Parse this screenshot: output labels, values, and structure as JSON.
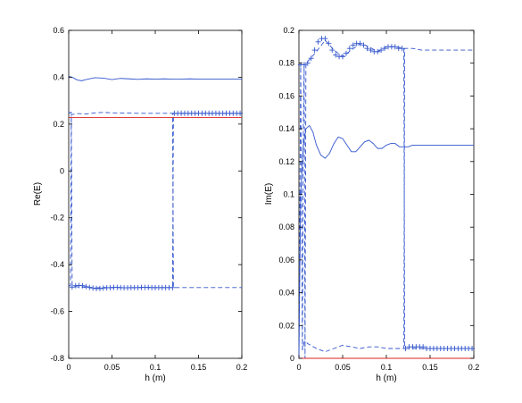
{
  "chart_data": [
    {
      "type": "line",
      "title": "",
      "xlabel": "h (m)",
      "ylabel": "Re(E)",
      "xlim": [
        0,
        0.2
      ],
      "ylim": [
        -0.8,
        0.6
      ],
      "x_ticks": [
        "0",
        "0.05",
        "0.1",
        "0.15",
        "0.2"
      ],
      "y_ticks": [
        "-0.8",
        "-0.6",
        "-0.4",
        "-0.2",
        "0",
        "0.2",
        "0.4",
        "0.6"
      ],
      "x_tick_values": [
        0,
        0.05,
        0.1,
        0.15,
        0.2
      ],
      "y_tick_values": [
        -0.8,
        -0.6,
        -0.4,
        -0.2,
        0,
        0.2,
        0.4,
        0.6
      ],
      "grid": false,
      "series": [
        {
          "style": "solid",
          "color": "#3355cc",
          "x": [
            0,
            0.005,
            0.01,
            0.015,
            0.02,
            0.03,
            0.04,
            0.05,
            0.06,
            0.07,
            0.08,
            0.09,
            0.1,
            0.11,
            0.12,
            0.13,
            0.14,
            0.15,
            0.16,
            0.17,
            0.18,
            0.19,
            0.2
          ],
          "y": [
            0.405,
            0.398,
            0.388,
            0.385,
            0.39,
            0.398,
            0.396,
            0.39,
            0.395,
            0.393,
            0.391,
            0.393,
            0.392,
            0.393,
            0.392,
            0.392,
            0.393,
            0.392,
            0.392,
            0.392,
            0.392,
            0.392,
            0.392
          ]
        },
        {
          "style": "dashed",
          "color": "#3355cc",
          "x": [
            0,
            0.002,
            0.003,
            0.004,
            0.01,
            0.02,
            0.03,
            0.04,
            0.05,
            0.06,
            0.07,
            0.08,
            0.09,
            0.1,
            0.11,
            0.12,
            0.121,
            0.13,
            0.14,
            0.15,
            0.16,
            0.17,
            0.18,
            0.19,
            0.2
          ],
          "y": [
            0.245,
            0.25,
            0.25,
            -0.49,
            -0.495,
            -0.497,
            -0.5,
            -0.497,
            -0.499,
            -0.498,
            -0.499,
            -0.498,
            -0.498,
            -0.498,
            -0.498,
            -0.498,
            0.245,
            0.245,
            0.245,
            0.245,
            0.245,
            0.245,
            0.245,
            0.245,
            0.245
          ]
        },
        {
          "style": "dashed",
          "color": "#3355cc",
          "x": [
            0,
            0.002,
            0.003,
            0.01,
            0.02,
            0.03,
            0.04,
            0.05,
            0.06,
            0.07,
            0.08,
            0.09,
            0.1,
            0.11,
            0.12,
            0.121,
            0.13,
            0.14,
            0.15,
            0.16,
            0.17,
            0.18,
            0.19,
            0.2
          ],
          "y": [
            -0.49,
            -0.49,
            0.24,
            0.245,
            0.243,
            0.248,
            0.25,
            0.248,
            0.247,
            0.247,
            0.246,
            0.246,
            0.246,
            0.246,
            0.246,
            -0.498,
            -0.498,
            -0.498,
            -0.498,
            -0.498,
            -0.498,
            -0.498,
            -0.498,
            -0.498
          ]
        },
        {
          "style": "solid",
          "color": "#dd2222",
          "x": [
            0,
            0.2
          ],
          "y": [
            0.228,
            0.228
          ]
        },
        {
          "style": "marker",
          "marker": "+",
          "color": "#3355cc",
          "x": [
            0.004,
            0.008,
            0.012,
            0.016,
            0.02,
            0.024,
            0.028,
            0.032,
            0.036,
            0.04,
            0.044,
            0.048,
            0.052,
            0.056,
            0.06,
            0.064,
            0.068,
            0.072,
            0.076,
            0.08,
            0.084,
            0.088,
            0.092,
            0.096,
            0.1,
            0.104,
            0.108,
            0.112,
            0.116,
            0.12
          ],
          "y": [
            -0.496,
            -0.49,
            -0.489,
            -0.49,
            -0.494,
            -0.497,
            -0.5,
            -0.502,
            -0.502,
            -0.5,
            -0.499,
            -0.498,
            -0.497,
            -0.497,
            -0.498,
            -0.499,
            -0.499,
            -0.498,
            -0.498,
            -0.498,
            -0.497,
            -0.497,
            -0.497,
            -0.498,
            -0.498,
            -0.498,
            -0.498,
            -0.498,
            -0.498,
            -0.498
          ]
        },
        {
          "style": "marker",
          "marker": "+",
          "color": "#3355cc",
          "x": [
            0.122,
            0.126,
            0.13,
            0.134,
            0.138,
            0.142,
            0.146,
            0.15,
            0.154,
            0.158,
            0.162,
            0.166,
            0.17,
            0.174,
            0.178,
            0.182,
            0.186,
            0.19,
            0.194,
            0.198
          ],
          "y": [
            0.246,
            0.246,
            0.246,
            0.246,
            0.246,
            0.246,
            0.246,
            0.246,
            0.246,
            0.246,
            0.246,
            0.246,
            0.246,
            0.246,
            0.246,
            0.246,
            0.246,
            0.246,
            0.246,
            0.246
          ]
        }
      ]
    },
    {
      "type": "line",
      "title": "",
      "xlabel": "h (m)",
      "ylabel": "Im(E)",
      "xlim": [
        0,
        0.2
      ],
      "ylim": [
        0,
        0.2
      ],
      "x_ticks": [
        "0",
        "0.05",
        "0.1",
        "0.15",
        "0.2"
      ],
      "y_ticks": [
        "0",
        "0.02",
        "0.04",
        "0.06",
        "0.08",
        "0.1",
        "0.12",
        "0.14",
        "0.16",
        "0.18",
        "0.2"
      ],
      "x_tick_values": [
        0,
        0.05,
        0.1,
        0.15,
        0.2
      ],
      "y_tick_values": [
        0,
        0.02,
        0.04,
        0.06,
        0.08,
        0.1,
        0.12,
        0.14,
        0.16,
        0.18,
        0.2
      ],
      "grid": false,
      "series": [
        {
          "style": "solid",
          "color": "#3355cc",
          "x": [
            0,
            0.002,
            0.005,
            0.008,
            0.012,
            0.016,
            0.02,
            0.025,
            0.03,
            0.035,
            0.04,
            0.045,
            0.05,
            0.055,
            0.06,
            0.065,
            0.07,
            0.075,
            0.08,
            0.085,
            0.09,
            0.095,
            0.1,
            0.105,
            0.11,
            0.115,
            0.12,
            0.125,
            0.13,
            0.14,
            0.15,
            0.16,
            0.17,
            0.18,
            0.19,
            0.2
          ],
          "y": [
            0.0,
            0.1,
            0.13,
            0.14,
            0.142,
            0.138,
            0.13,
            0.124,
            0.122,
            0.125,
            0.131,
            0.135,
            0.134,
            0.13,
            0.126,
            0.126,
            0.129,
            0.132,
            0.133,
            0.131,
            0.128,
            0.128,
            0.13,
            0.131,
            0.131,
            0.129,
            0.129,
            0.129,
            0.13,
            0.13,
            0.13,
            0.13,
            0.13,
            0.13,
            0.13,
            0.13
          ]
        },
        {
          "style": "dashed",
          "color": "#3355cc",
          "x": [
            0,
            0.002,
            0.004,
            0.006,
            0.008,
            0.01,
            0.02,
            0.03,
            0.04,
            0.05,
            0.06,
            0.07,
            0.08,
            0.09,
            0.1,
            0.11,
            0.12,
            0.121,
            0.13,
            0.14,
            0.15,
            0.16,
            0.17,
            0.18,
            0.19,
            0.2
          ],
          "y": [
            0.0,
            0.18,
            0.005,
            0.01,
            0.01,
            0.009,
            0.006,
            0.004,
            0.006,
            0.008,
            0.007,
            0.006,
            0.007,
            0.007,
            0.006,
            0.006,
            0.006,
            0.189,
            0.189,
            0.188,
            0.188,
            0.188,
            0.188,
            0.188,
            0.188,
            0.188
          ]
        },
        {
          "style": "dashed",
          "color": "#3355cc",
          "x": [
            0.004,
            0.005,
            0.006,
            0.007,
            0.008,
            0.009,
            0.01,
            0.02,
            0.03,
            0.04,
            0.05,
            0.06,
            0.07,
            0.08,
            0.09,
            0.1,
            0.11,
            0.12,
            0.121,
            0.2
          ],
          "y": [
            0.005,
            0.14,
            0.18,
            0.0,
            0.18,
            0.18,
            0.181,
            0.187,
            0.194,
            0.188,
            0.184,
            0.188,
            0.192,
            0.19,
            0.187,
            0.19,
            0.19,
            0.189,
            0.006,
            0.006
          ]
        },
        {
          "style": "solid",
          "color": "#dd2222",
          "x": [
            0,
            0.2
          ],
          "y": [
            0.0,
            0.0
          ]
        },
        {
          "style": "marker",
          "marker": "+",
          "color": "#3355cc",
          "x": [
            0.002,
            0.006,
            0.01,
            0.014,
            0.018,
            0.022,
            0.026,
            0.03,
            0.034,
            0.038,
            0.042,
            0.046,
            0.05,
            0.054,
            0.058,
            0.062,
            0.066,
            0.07,
            0.074,
            0.078,
            0.082,
            0.086,
            0.09,
            0.094,
            0.098,
            0.102,
            0.106,
            0.11,
            0.114,
            0.118
          ],
          "y": [
            0.179,
            0.179,
            0.18,
            0.183,
            0.188,
            0.193,
            0.195,
            0.195,
            0.192,
            0.188,
            0.185,
            0.184,
            0.184,
            0.186,
            0.189,
            0.191,
            0.192,
            0.192,
            0.191,
            0.189,
            0.188,
            0.187,
            0.187,
            0.188,
            0.189,
            0.19,
            0.19,
            0.19,
            0.189,
            0.189
          ]
        },
        {
          "style": "marker",
          "marker": "+",
          "color": "#3355cc",
          "x": [
            0.122,
            0.126,
            0.13,
            0.134,
            0.138,
            0.142,
            0.146,
            0.15,
            0.154,
            0.158,
            0.162,
            0.166,
            0.17,
            0.174,
            0.178,
            0.182,
            0.186,
            0.19,
            0.194,
            0.198
          ],
          "y": [
            0.006,
            0.007,
            0.007,
            0.007,
            0.007,
            0.007,
            0.006,
            0.006,
            0.006,
            0.006,
            0.006,
            0.006,
            0.006,
            0.006,
            0.006,
            0.006,
            0.006,
            0.006,
            0.006,
            0.006
          ]
        }
      ]
    }
  ]
}
